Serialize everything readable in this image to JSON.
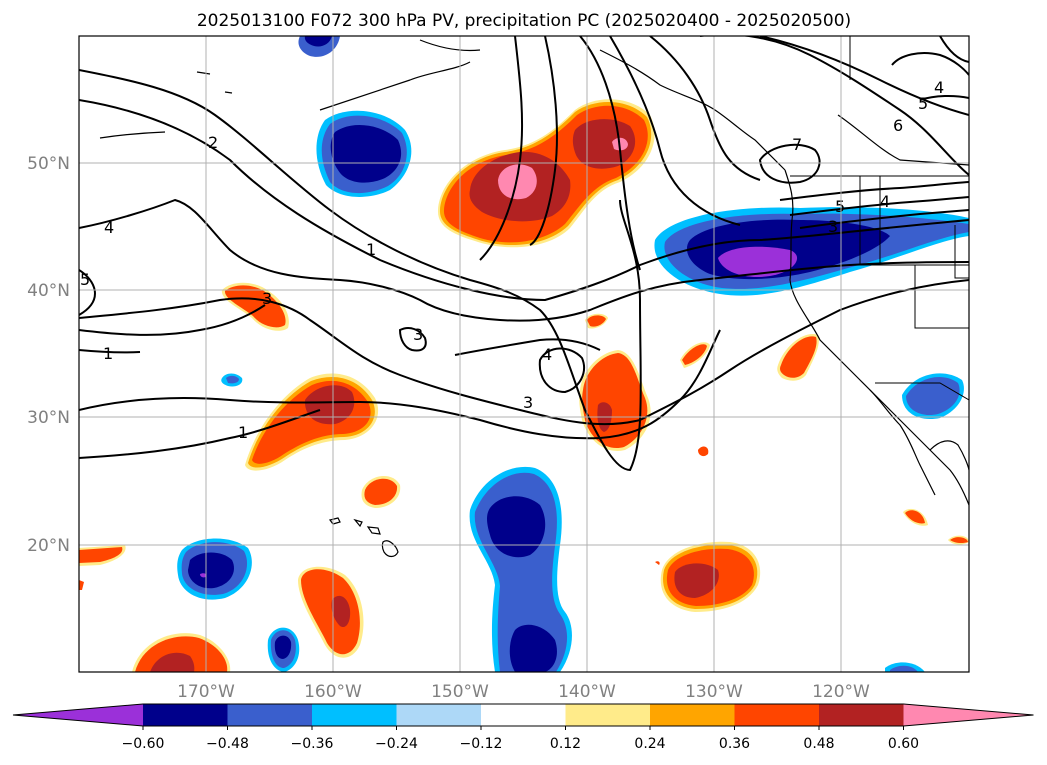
{
  "title": "2025013100 F072 300 hPa PV, precipitation PC (2025020400 - 2025020500)",
  "lon_labels": [
    "170°W",
    "160°W",
    "150°W",
    "140°W",
    "130°W",
    "120°W"
  ],
  "lat_labels": [
    "50°N",
    "40°N",
    "30°N",
    "20°N"
  ],
  "colorbar": {
    "ticks": [
      "−0.60",
      "−0.48",
      "−0.36",
      "−0.24",
      "−0.12",
      "0.12",
      "0.24",
      "0.36",
      "0.48",
      "0.60"
    ],
    "colors": [
      "#9b30d9",
      "#00008b",
      "#3a5fcd",
      "#00bfff",
      "#add8f7",
      "#ffffff",
      "#ffeb8a",
      "#ffa500",
      "#ff4500",
      "#b22222",
      "#ff88b0"
    ]
  },
  "pv_contour_labels": [
    "2",
    "4",
    "1",
    "1",
    "3",
    "3",
    "1",
    "4",
    "3",
    "7",
    "5",
    "4",
    "6",
    "5",
    "4",
    "3",
    "5"
  ]
}
